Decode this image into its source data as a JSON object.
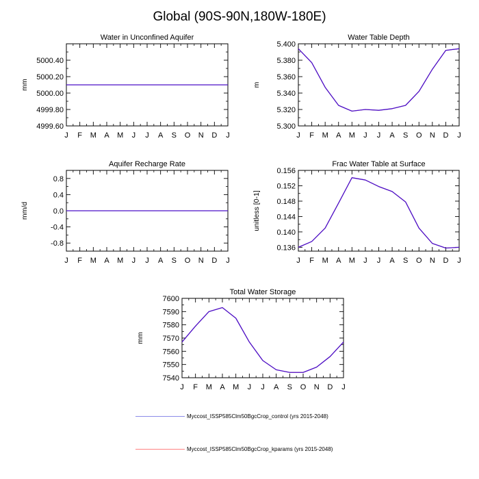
{
  "page_title": "Global (90S-90N,180W-180E)",
  "colors": {
    "control": "#4a4adf",
    "kparams": "#ff6060",
    "overlap": "#4a0fc8",
    "axis": "#000000"
  },
  "legend": [
    {
      "label": "Myccost_ISSP585Clm50BgcCrop_control (yrs 2015-2048)",
      "color": "#8a8ae8"
    },
    {
      "label": "Myccost_ISSP585Clm50BgcCrop_kparams (yrs 2015-2048)",
      "color": "#ff8080"
    }
  ],
  "chart_data": [
    {
      "type": "line",
      "title": "Water in Unconfined Aquifer",
      "ylabel": "mm",
      "xlabel": "",
      "categories": [
        "J",
        "F",
        "M",
        "A",
        "M",
        "J",
        "J",
        "A",
        "S",
        "O",
        "N",
        "D",
        "J"
      ],
      "ylim": [
        4999.6,
        5000.6
      ],
      "yticks": [
        4999.6,
        4999.8,
        5000.0,
        5000.2,
        5000.4
      ],
      "ytick_labels": [
        "4999.60",
        "4999.80",
        "5000.00",
        "5000.20",
        "5000.40"
      ],
      "series": [
        {
          "name": "Myccost_ISSP585Clm50BgcCrop_control (yrs 2015-2048)",
          "values": [
            5000.1,
            5000.1,
            5000.1,
            5000.1,
            5000.1,
            5000.1,
            5000.1,
            5000.1,
            5000.1,
            5000.1,
            5000.1,
            5000.1,
            5000.1
          ]
        },
        {
          "name": "Myccost_ISSP585Clm50BgcCrop_kparams (yrs 2015-2048)",
          "values": [
            5000.1,
            5000.1,
            5000.1,
            5000.1,
            5000.1,
            5000.1,
            5000.1,
            5000.1,
            5000.1,
            5000.1,
            5000.1,
            5000.1,
            5000.1
          ]
        }
      ]
    },
    {
      "type": "line",
      "title": "Water Table Depth",
      "ylabel": "m",
      "xlabel": "",
      "categories": [
        "J",
        "F",
        "M",
        "A",
        "M",
        "J",
        "J",
        "A",
        "S",
        "O",
        "N",
        "D",
        "J"
      ],
      "ylim": [
        5.3,
        5.4
      ],
      "yticks": [
        5.3,
        5.32,
        5.34,
        5.36,
        5.38,
        5.4
      ],
      "ytick_labels": [
        "5.300",
        "5.320",
        "5.340",
        "5.360",
        "5.380",
        "5.400"
      ],
      "series": [
        {
          "name": "Myccost_ISSP585Clm50BgcCrop_control (yrs 2015-2048)",
          "values": [
            5.394,
            5.377,
            5.347,
            5.325,
            5.318,
            5.32,
            5.319,
            5.321,
            5.325,
            5.342,
            5.369,
            5.392,
            5.394
          ]
        },
        {
          "name": "Myccost_ISSP585Clm50BgcCrop_kparams (yrs 2015-2048)",
          "values": [
            5.394,
            5.377,
            5.347,
            5.325,
            5.318,
            5.32,
            5.319,
            5.321,
            5.325,
            5.342,
            5.369,
            5.392,
            5.394
          ]
        }
      ]
    },
    {
      "type": "line",
      "title": "Aquifer Recharge Rate",
      "ylabel": "mm/d",
      "xlabel": "",
      "categories": [
        "J",
        "F",
        "M",
        "A",
        "M",
        "J",
        "J",
        "A",
        "S",
        "O",
        "N",
        "D",
        "J"
      ],
      "ylim": [
        -1.0,
        1.0
      ],
      "yticks": [
        -0.8,
        -0.4,
        0.0,
        0.4,
        0.8
      ],
      "ytick_labels": [
        "-0.8",
        "-0.4",
        "0.0",
        "0.4",
        "0.8"
      ],
      "series": [
        {
          "name": "Myccost_ISSP585Clm50BgcCrop_control (yrs 2015-2048)",
          "values": [
            0,
            0,
            0,
            0,
            0,
            0,
            0,
            0,
            0,
            0,
            0,
            0,
            0
          ]
        },
        {
          "name": "Myccost_ISSP585Clm50BgcCrop_kparams (yrs 2015-2048)",
          "values": [
            0,
            0,
            0,
            0,
            0,
            0,
            0,
            0,
            0,
            0,
            0,
            0,
            0
          ]
        }
      ]
    },
    {
      "type": "line",
      "title": "Frac Water Table at Surface",
      "ylabel": "unitless [0-1]",
      "xlabel": "",
      "categories": [
        "J",
        "F",
        "M",
        "A",
        "M",
        "J",
        "J",
        "A",
        "S",
        "O",
        "N",
        "D",
        "J"
      ],
      "ylim": [
        0.135,
        0.156
      ],
      "yticks": [
        0.136,
        0.14,
        0.144,
        0.148,
        0.152,
        0.156
      ],
      "ytick_labels": [
        "0.136",
        "0.140",
        "0.144",
        "0.148",
        "0.152",
        "0.156"
      ],
      "series": [
        {
          "name": "Myccost_ISSP585Clm50BgcCrop_control (yrs 2015-2048)",
          "values": [
            0.136,
            0.1375,
            0.141,
            0.1475,
            0.1541,
            0.1535,
            0.1518,
            0.1505,
            0.1478,
            0.141,
            0.137,
            0.1358,
            0.136
          ]
        },
        {
          "name": "Myccost_ISSP585Clm50BgcCrop_kparams (yrs 2015-2048)",
          "values": [
            0.136,
            0.1375,
            0.141,
            0.1475,
            0.1541,
            0.1535,
            0.1518,
            0.1505,
            0.1478,
            0.141,
            0.137,
            0.1358,
            0.136
          ]
        }
      ]
    },
    {
      "type": "line",
      "title": "Total Water Storage",
      "ylabel": "mm",
      "xlabel": "",
      "categories": [
        "J",
        "F",
        "M",
        "A",
        "M",
        "J",
        "J",
        "A",
        "S",
        "O",
        "N",
        "D",
        "J"
      ],
      "ylim": [
        7540,
        7600
      ],
      "yticks": [
        7540,
        7550,
        7560,
        7570,
        7580,
        7590,
        7600
      ],
      "ytick_labels": [
        "7540",
        "7550",
        "7560",
        "7570",
        "7580",
        "7590",
        "7600"
      ],
      "series": [
        {
          "name": "Myccost_ISSP585Clm50BgcCrop_control (yrs 2015-2048)",
          "values": [
            7567,
            7579,
            7590,
            7593,
            7585,
            7567,
            7553,
            7546,
            7544,
            7544,
            7548,
            7556,
            7567
          ]
        },
        {
          "name": "Myccost_ISSP585Clm50BgcCrop_kparams (yrs 2015-2048)",
          "values": [
            7567,
            7579,
            7590,
            7593,
            7585,
            7567,
            7553,
            7546,
            7544,
            7544,
            7548,
            7556,
            7567
          ]
        }
      ]
    }
  ]
}
